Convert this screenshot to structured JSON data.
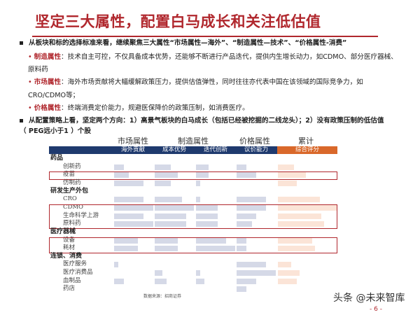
{
  "title": "坚定三大属性，配置白马成长和关注低估值",
  "bullets": [
    {
      "text": "从板块和标的选择标准来看，继续聚焦三大属性“市场属性—海外”、“制造属性—技术”、“价格属性-消费”"
    },
    {
      "label": "制造属性",
      "text": "：技术自主可控，不仅具备成本优势，还能够不断进行产品迭代，提供内生增长动力，如CDMO、部分医疗器械、",
      "cont": "原料药"
    },
    {
      "label": "市场属性",
      "text": "：海外市场贡献将大幅缓解政策压力，提供估值弹性，同时往往亦代表中国在该领域的国际竞争力，如",
      "cont": "CRO/CDMO等；"
    },
    {
      "label": "价格属性",
      "text": "：终端消费定价能力，规避医保降价的政策压制，如消费医疗。"
    },
    {
      "text": "从配置策略上看，坚定两个方向：1）高景气板块的白马成长（包括已经被挖掘的二线龙头）；2）没有政策压制的低估值",
      "cont": "（ PEG远小于1 ）个股"
    }
  ],
  "table": {
    "groups": [
      "市场属性",
      "制造属性",
      "价格属性",
      "累计"
    ],
    "columns": [
      "海外贡献",
      "成本优势",
      "迭代创新",
      "议价能力",
      "综合评分"
    ],
    "colors": {
      "header": "#1f3a6e",
      "score_header": "#d9682a",
      "bar": "#d5d9e7",
      "score_bar": "#fbe4d7",
      "highlight": "#b0272d"
    },
    "sections": [
      {
        "name": "药品",
        "rows": [
          {
            "name": "创新药",
            "values": [
              0.25,
              0.4,
              0.33,
              0.25,
              0.27
            ],
            "highlight": false
          },
          {
            "name": "疫苗",
            "values": [
              0.38,
              0.58,
              0.33,
              0.5,
              0.47
            ],
            "highlight": true
          },
          {
            "name": "仿制药",
            "values": [
              0.75,
              0.4,
              0.1,
              0,
              0.32
            ],
            "highlight": false
          }
        ]
      },
      {
        "name": "研发生产外包",
        "rows": [
          {
            "name": "CRO",
            "values": [
              0.75,
              0.7,
              0.1,
              0.75,
              0.71
            ],
            "highlight": false
          },
          {
            "name": "CDMO",
            "values": [
              1.0,
              1.0,
              0.55,
              0.75,
              1.0
            ],
            "highlight": true
          },
          {
            "name": "生命科学上游",
            "values": [
              0.75,
              0.8,
              0.55,
              0.5,
              0.73
            ],
            "highlight": true
          },
          {
            "name": "原料药",
            "values": [
              1.0,
              0.8,
              0.55,
              0.38,
              0.78
            ],
            "highlight": true
          }
        ]
      },
      {
        "name": "医疗器械",
        "rows": [
          {
            "name": "设备",
            "values": [
              0.62,
              0.58,
              0.76,
              0.25,
              0.58
            ],
            "highlight": true
          },
          {
            "name": "耗材",
            "values": [
              0.62,
              0.58,
              1.0,
              0.25,
              0.63
            ],
            "highlight": true
          }
        ]
      },
      {
        "name": "连锁、消费",
        "rows": [
          {
            "name": "医疗服务",
            "values": [
              0.12,
              0,
              0,
              0.75,
              0.23
            ],
            "highlight": false
          },
          {
            "name": "医疗消费品",
            "values": [
              0,
              0.2,
              0.1,
              1.0,
              0.37
            ],
            "highlight": false
          },
          {
            "name": "血制品",
            "values": [
              0.25,
              0.3,
              0.22,
              0.5,
              0.32
            ],
            "highlight": false
          },
          {
            "name": "药店",
            "values": [
              0,
              0,
              0,
              0.25,
              0
            ],
            "highlight": false
          }
        ]
      }
    ]
  },
  "source": "数据来源：招商证券",
  "watermark": "头条 @未来智库",
  "page_number": "- 6 -"
}
